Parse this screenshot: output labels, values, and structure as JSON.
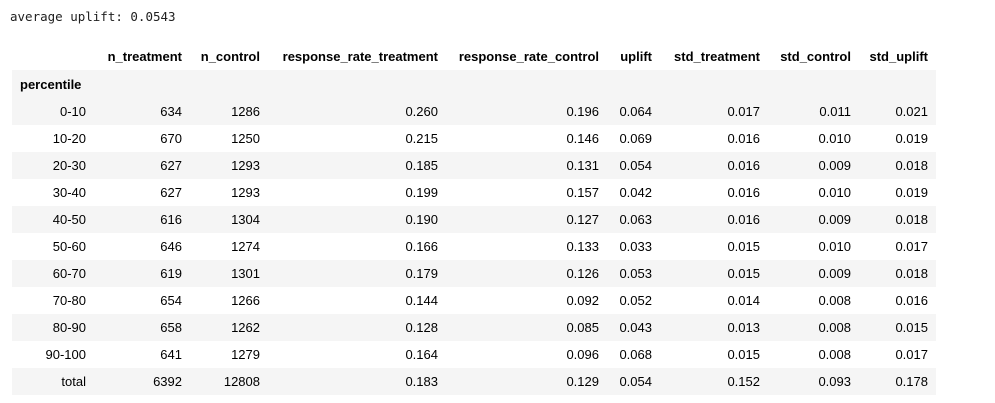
{
  "output": {
    "text": "average uplift: 0.0543"
  },
  "table": {
    "index_name": "percentile",
    "columns": [
      "n_treatment",
      "n_control",
      "response_rate_treatment",
      "response_rate_control",
      "uplift",
      "std_treatment",
      "std_control",
      "std_uplift"
    ],
    "rows": [
      {
        "label": "0-10",
        "cells": [
          "634",
          "1286",
          "0.260",
          "0.196",
          "0.064",
          "0.017",
          "0.011",
          "0.021"
        ]
      },
      {
        "label": "10-20",
        "cells": [
          "670",
          "1250",
          "0.215",
          "0.146",
          "0.069",
          "0.016",
          "0.010",
          "0.019"
        ]
      },
      {
        "label": "20-30",
        "cells": [
          "627",
          "1293",
          "0.185",
          "0.131",
          "0.054",
          "0.016",
          "0.009",
          "0.018"
        ]
      },
      {
        "label": "30-40",
        "cells": [
          "627",
          "1293",
          "0.199",
          "0.157",
          "0.042",
          "0.016",
          "0.010",
          "0.019"
        ]
      },
      {
        "label": "40-50",
        "cells": [
          "616",
          "1304",
          "0.190",
          "0.127",
          "0.063",
          "0.016",
          "0.009",
          "0.018"
        ]
      },
      {
        "label": "50-60",
        "cells": [
          "646",
          "1274",
          "0.166",
          "0.133",
          "0.033",
          "0.015",
          "0.010",
          "0.017"
        ]
      },
      {
        "label": "60-70",
        "cells": [
          "619",
          "1301",
          "0.179",
          "0.126",
          "0.053",
          "0.015",
          "0.009",
          "0.018"
        ]
      },
      {
        "label": "70-80",
        "cells": [
          "654",
          "1266",
          "0.144",
          "0.092",
          "0.052",
          "0.014",
          "0.008",
          "0.016"
        ]
      },
      {
        "label": "80-90",
        "cells": [
          "658",
          "1262",
          "0.128",
          "0.085",
          "0.043",
          "0.013",
          "0.008",
          "0.015"
        ]
      },
      {
        "label": "90-100",
        "cells": [
          "641",
          "1279",
          "0.164",
          "0.096",
          "0.068",
          "0.015",
          "0.008",
          "0.017"
        ]
      },
      {
        "label": "total",
        "cells": [
          "6392",
          "12808",
          "0.183",
          "0.129",
          "0.054",
          "0.152",
          "0.093",
          "0.178"
        ]
      }
    ]
  }
}
